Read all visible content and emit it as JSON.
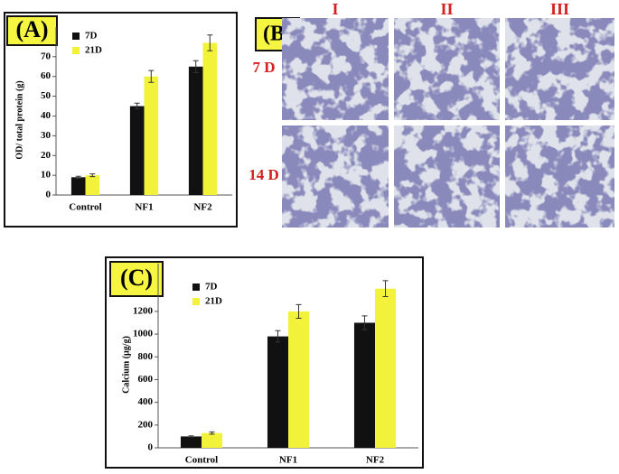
{
  "chart_data": [
    {
      "type": "bar",
      "panel_label": "(A)",
      "ylabel": "OD/ total protein (g)",
      "categories": [
        "Control",
        "NF1",
        "NF2"
      ],
      "series": [
        {
          "name": "7D",
          "color": "#111111",
          "values": [
            9,
            45,
            65
          ],
          "errors": [
            0.5,
            1.5,
            3
          ]
        },
        {
          "name": "21D",
          "color": "#f2f23a",
          "values": [
            10,
            60,
            77
          ],
          "errors": [
            0.7,
            3,
            4
          ]
        }
      ],
      "ylim": [
        0,
        85
      ],
      "yticks": [
        0,
        10,
        20,
        30,
        40,
        50,
        60,
        70
      ]
    },
    {
      "type": "bar",
      "panel_label": "(C)",
      "ylabel": "Calcium (µg/g)",
      "categories": [
        "Control",
        "NF1",
        "NF2"
      ],
      "series": [
        {
          "name": "7D",
          "color": "#111111",
          "values": [
            100,
            980,
            1100
          ],
          "errors": [
            5,
            50,
            60
          ]
        },
        {
          "name": "21D",
          "color": "#f2f23a",
          "values": [
            130,
            1200,
            1400
          ],
          "errors": [
            10,
            60,
            70
          ]
        }
      ],
      "ylim": [
        0,
        1620
      ],
      "yticks": [
        0,
        200,
        400,
        600,
        800,
        1000,
        1200
      ]
    }
  ],
  "panel_b": {
    "label": "(B)",
    "columns": [
      "I",
      "II",
      "III"
    ],
    "rows": [
      "7 D",
      "14 D"
    ]
  }
}
